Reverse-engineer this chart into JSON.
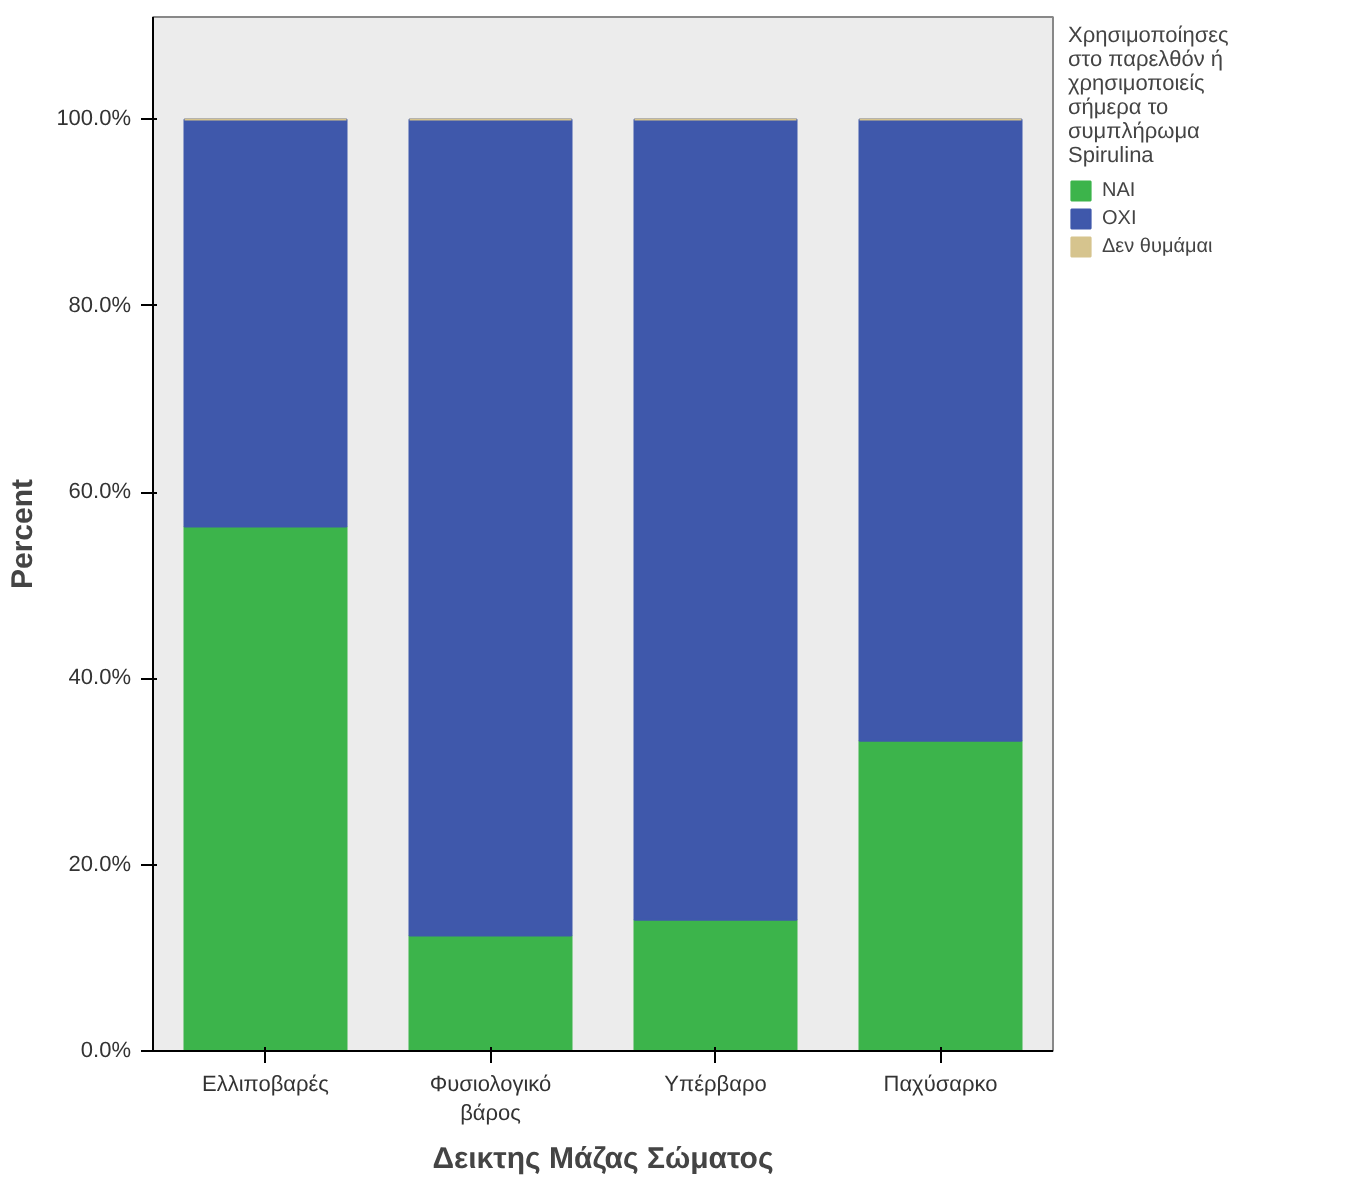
{
  "chart_data": {
    "type": "bar",
    "stacked": true,
    "xlabel": "Δεικτης Μάζας Σώματος",
    "ylabel": "Percent",
    "legend_title": "Χρησιμοποίησες στο παρελθόν ή χρησιμοποιείς σήμερα το συμπλήρωμα Spirulina",
    "categories": [
      "Ελλιποβαρές",
      "Φυσιολογικό βάρος",
      "Υπέρβαρο",
      "Παχύσαρκο"
    ],
    "series": [
      {
        "name": "ΝΑΙ",
        "color": "#3cb44b",
        "values": [
          56.3,
          12.4,
          14.1,
          33.3
        ]
      },
      {
        "name": "ΟΧΙ",
        "color": "#3f58ab",
        "values": [
          43.7,
          87.6,
          85.9,
          66.7
        ]
      },
      {
        "name": "Δεν θυμάμαι",
        "color": "#d6c48e",
        "values": [
          0,
          0,
          0,
          0
        ]
      }
    ],
    "ylim": [
      0,
      111
    ],
    "yticks": [
      {
        "value": 0,
        "label": "0.0%"
      },
      {
        "value": 20,
        "label": "20.0%"
      },
      {
        "value": 40,
        "label": "40.0%"
      },
      {
        "value": 60,
        "label": "60.0%"
      },
      {
        "value": 80,
        "label": "80.0%"
      },
      {
        "value": 100,
        "label": "100.0%"
      }
    ],
    "grid": false,
    "legend": "right"
  }
}
